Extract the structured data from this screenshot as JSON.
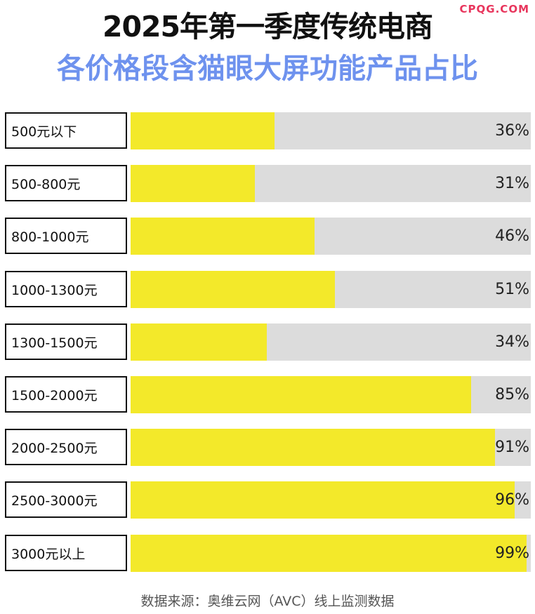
{
  "watermark": "CPQG.COM",
  "source": "数据来源：奥维云网（AVC）线上监测数据",
  "colors": {
    "bar": "#f3e92a",
    "track": "#dcdcdc",
    "title_primary": "#111111",
    "title_secondary": "#6e92ee",
    "watermark": "#e8365d"
  },
  "chart_data": {
    "type": "bar",
    "orientation": "horizontal",
    "title": "2025年第一季度传统电商",
    "subtitle": "各价格段含猫眼大屏功能产品占比",
    "categories": [
      "500元以下",
      "500-800元",
      "800-1000元",
      "1000-1300元",
      "1300-1500元",
      "1500-2000元",
      "2000-2500元",
      "2500-3000元",
      "3000元以上"
    ],
    "values": [
      36,
      31,
      46,
      51,
      34,
      85,
      91,
      96,
      99
    ],
    "value_labels": [
      "36%",
      "31%",
      "46%",
      "51%",
      "34%",
      "85%",
      "91%",
      "96%",
      "99%"
    ],
    "xlim": [
      0,
      100
    ],
    "grid": false,
    "legend": "none"
  }
}
